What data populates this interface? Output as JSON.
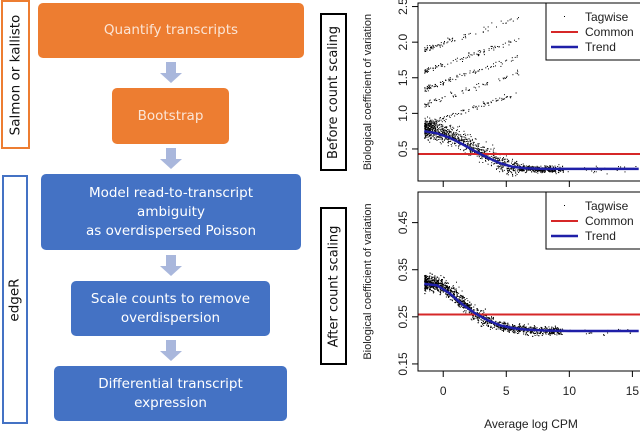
{
  "flow": {
    "steps": [
      {
        "label": "Quantify transcripts",
        "color": "#ED7D31"
      },
      {
        "label": "Bootstrap",
        "color": "#ED7D31"
      },
      {
        "label_lines": [
          "Model read-to-transcript",
          "ambiguity",
          "as overdispersed Poisson"
        ],
        "color": "#4472C4"
      },
      {
        "label_lines": [
          "Scale counts to remove",
          "overdispersion"
        ],
        "color": "#4472C4"
      },
      {
        "label_lines": [
          "Differential transcript",
          "expression"
        ],
        "color": "#4472C4"
      }
    ],
    "groups": {
      "salmon": "Salmon or kallisto",
      "edger": "edgeR"
    },
    "panel_labels": {
      "before": "Before count scaling",
      "after": "After count scaling"
    }
  },
  "chart_data": [
    {
      "type": "scatter",
      "title": "Before count scaling",
      "xlabel": "Average log CPM",
      "ylabel": "Biological coefficient of variation",
      "xlim": [
        -2,
        16
      ],
      "ylim": [
        0.05,
        2.55
      ],
      "xticks": [
        "0",
        "5",
        "10"
      ],
      "yticks": [
        "0.5",
        "1.0",
        "1.5",
        "2.0",
        "2.5"
      ],
      "ytick_values": [
        0.5,
        1.0,
        1.5,
        2.0,
        2.5
      ],
      "xtick_values": [
        0,
        5,
        10
      ],
      "legend": {
        "placement": "top-right",
        "entries": [
          "Tagwise",
          "Common",
          "Trend"
        ]
      },
      "colors": {
        "tagwise": "#000000",
        "common": "#D62728",
        "trend": "#1F1FA8"
      },
      "common": 0.43,
      "trend": {
        "x": [
          -1.5,
          -0.5,
          0.5,
          1.5,
          2.5,
          3.5,
          4.5,
          5.5,
          6.5,
          8,
          10,
          12,
          15.5
        ],
        "y": [
          0.75,
          0.72,
          0.66,
          0.57,
          0.47,
          0.38,
          0.3,
          0.25,
          0.23,
          0.22,
          0.22,
          0.22,
          0.22
        ]
      },
      "tagwise_bands": [
        2.05,
        1.75,
        1.5,
        1.28,
        1.0
      ],
      "tagwise_count": 1800
    },
    {
      "type": "scatter",
      "title": "After count scaling",
      "xlabel": "Average log CPM",
      "ylabel": "Biological coefficient of variation",
      "xlim": [
        -2,
        16
      ],
      "ylim": [
        0.135,
        0.515
      ],
      "xticks": [
        "0",
        "5",
        "10",
        "15"
      ],
      "xtick_values": [
        0,
        5,
        10,
        15
      ],
      "yticks": [
        "0.15",
        "0.25",
        "0.35",
        "0.45"
      ],
      "ytick_values": [
        0.15,
        0.25,
        0.35,
        0.45
      ],
      "legend": {
        "placement": "top-right",
        "entries": [
          "Tagwise",
          "Common",
          "Trend"
        ]
      },
      "colors": {
        "tagwise": "#000000",
        "common": "#D62728",
        "trend": "#1F1FA8"
      },
      "common": 0.255,
      "trend": {
        "x": [
          -1.5,
          -0.5,
          0.5,
          1.5,
          2.5,
          3.5,
          4.5,
          5.5,
          6.5,
          8,
          10,
          12,
          15.5
        ],
        "y": [
          0.32,
          0.317,
          0.3,
          0.277,
          0.258,
          0.243,
          0.232,
          0.226,
          0.223,
          0.221,
          0.22,
          0.22,
          0.22
        ]
      },
      "tagwise_count": 1800
    }
  ]
}
